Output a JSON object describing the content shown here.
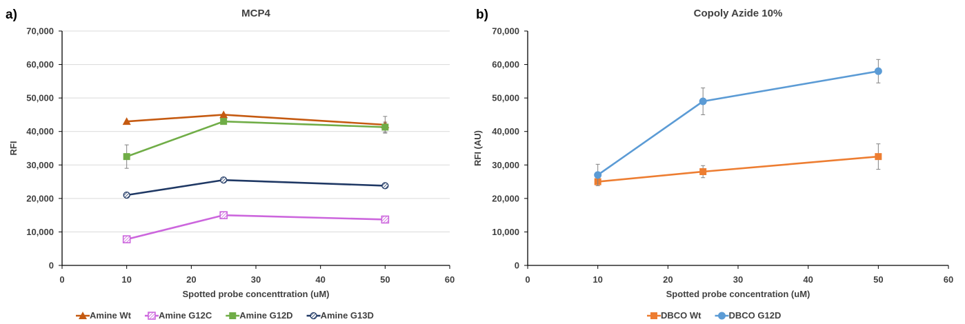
{
  "figure": {
    "panels": [
      "a)",
      "b)"
    ]
  },
  "chart_data": [
    {
      "type": "line",
      "panel_label": "a)",
      "title": "MCP4",
      "xlabel": "Spotted probe concenttration (uM)",
      "ylabel": "RFI",
      "xlim": [
        0,
        60
      ],
      "ylim": [
        0,
        70000
      ],
      "x_ticks": [
        0,
        10,
        20,
        30,
        40,
        50,
        60
      ],
      "x_tick_labels": [
        "0",
        "10",
        "20",
        "30",
        "40",
        "50",
        "60"
      ],
      "y_ticks": [
        0,
        10000,
        20000,
        30000,
        40000,
        50000,
        60000,
        70000
      ],
      "y_tick_labels": [
        "0",
        "10,000",
        "20,000",
        "30,000",
        "40,000",
        "50,000",
        "60,000",
        "70,000"
      ],
      "grid": "horizontal",
      "legend_position": "bottom",
      "series": [
        {
          "name": "Amine Wt",
          "color": "#c55a11",
          "marker": "triangle",
          "x": [
            10,
            25,
            50
          ],
          "y": [
            43000,
            45000,
            42000
          ],
          "error": [
            0,
            0,
            2500
          ]
        },
        {
          "name": "Amine G12C",
          "color": "#cc66dd",
          "marker": "square-hatched",
          "x": [
            10,
            25,
            50
          ],
          "y": [
            7800,
            15000,
            13700
          ],
          "error": [
            0,
            0,
            0
          ]
        },
        {
          "name": "Amine G12D",
          "color": "#70ad47",
          "marker": "square",
          "x": [
            10,
            25,
            50
          ],
          "y": [
            32500,
            43000,
            41300
          ],
          "error": [
            3500,
            0,
            1500
          ]
        },
        {
          "name": "Amine G13D",
          "color": "#1f3864",
          "marker": "circle-hatched",
          "x": [
            10,
            25,
            50
          ],
          "y": [
            21000,
            25500,
            23800
          ],
          "error": [
            0,
            0,
            0
          ]
        }
      ]
    },
    {
      "type": "line",
      "panel_label": "b)",
      "title": "Copoly Azide 10%",
      "xlabel": "Spotted probe concentration (uM)",
      "ylabel": "RFI (AU)",
      "xlim": [
        0,
        60
      ],
      "ylim": [
        0,
        70000
      ],
      "x_ticks": [
        0,
        10,
        20,
        30,
        40,
        50,
        60
      ],
      "x_tick_labels": [
        "0",
        "10",
        "20",
        "30",
        "40",
        "50",
        "60"
      ],
      "y_ticks": [
        0,
        10000,
        20000,
        30000,
        40000,
        50000,
        60000,
        70000
      ],
      "y_tick_labels": [
        "0",
        "10,000",
        "20,000",
        "30,000",
        "40,000",
        "50,000",
        "60,000",
        "70,000"
      ],
      "grid": "none",
      "legend_position": "bottom",
      "series": [
        {
          "name": "DBCO Wt",
          "color": "#ed7d31",
          "marker": "square",
          "x": [
            10,
            25,
            50
          ],
          "y": [
            25000,
            28000,
            32500
          ],
          "error": [
            0,
            1800,
            3800
          ]
        },
        {
          "name": "DBCO G12D",
          "color": "#5b9bd5",
          "marker": "circle",
          "x": [
            10,
            25,
            50
          ],
          "y": [
            27000,
            49000,
            58000
          ],
          "error": [
            3200,
            4000,
            3500
          ]
        }
      ]
    }
  ]
}
